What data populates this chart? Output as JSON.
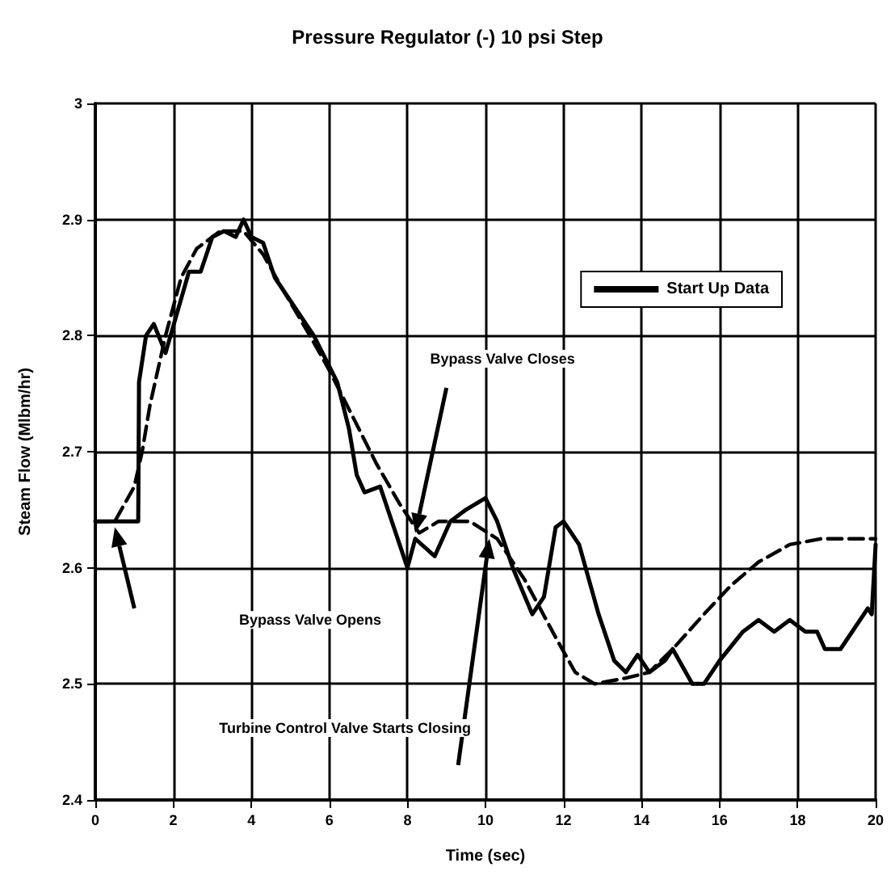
{
  "chart_data": {
    "type": "line",
    "title": "Pressure Regulator (-) 10 psi Step",
    "xlabel": "Time (sec)",
    "ylabel": "Steam Flow (Mlbm/hr)",
    "xlim": [
      0,
      20
    ],
    "xticks": [
      0,
      2,
      4,
      6,
      8,
      10,
      12,
      14,
      16,
      18,
      20
    ],
    "ylim": [
      2.4,
      3
    ],
    "yticks": [
      2.4,
      2.5,
      2.6,
      2.7,
      2.8,
      2.9,
      3
    ],
    "grid": true,
    "legend": "top right",
    "marker": "none",
    "series": [
      {
        "name": "Start Up Data",
        "color": "#000000",
        "line_style": "solid",
        "x": [
          0,
          1.1,
          1.12,
          1.3,
          1.5,
          1.8,
          2.1,
          2.4,
          2.7,
          3.0,
          3.3,
          3.6,
          3.8,
          4.0,
          4.3,
          4.6,
          5.0,
          5.6,
          6.2,
          6.5,
          6.7,
          6.9,
          7.3,
          7.6,
          8.0,
          8.2,
          8.7,
          9.1,
          9.5,
          10.0,
          10.3,
          10.7,
          11.2,
          11.5,
          11.8,
          12.0,
          12.4,
          12.9,
          13.3,
          13.6,
          13.9,
          14.2,
          14.6,
          14.8,
          15.3,
          15.6,
          16.0,
          16.6,
          17.0,
          17.4,
          17.8,
          18.2,
          18.5,
          18.7,
          19.1,
          19.5,
          19.8,
          19.9,
          20
        ],
        "values": [
          2.64,
          2.64,
          2.76,
          2.8,
          2.81,
          2.785,
          2.82,
          2.855,
          2.855,
          2.885,
          2.89,
          2.885,
          2.9,
          2.885,
          2.88,
          2.85,
          2.83,
          2.8,
          2.76,
          2.72,
          2.68,
          2.665,
          2.67,
          2.64,
          2.6,
          2.625,
          2.61,
          2.64,
          2.65,
          2.66,
          2.64,
          2.6,
          2.56,
          2.575,
          2.635,
          2.64,
          2.62,
          2.56,
          2.52,
          2.51,
          2.525,
          2.51,
          2.52,
          2.53,
          2.5,
          2.5,
          2.52,
          2.545,
          2.555,
          2.545,
          2.555,
          2.545,
          2.545,
          2.53,
          2.53,
          2.55,
          2.565,
          2.56,
          2.62
        ]
      },
      {
        "color": "#000000",
        "line_style": "dashed",
        "x": [
          0,
          0.5,
          1.0,
          1.2,
          1.4,
          1.8,
          2.2,
          2.6,
          3.2,
          3.8,
          4.3,
          4.8,
          5.5,
          6.0,
          6.6,
          7.2,
          7.8,
          8.3,
          8.8,
          9.6,
          10.3,
          11.0,
          11.8,
          12.3,
          12.8,
          13.6,
          14.2,
          14.8,
          15.6,
          16.3,
          17.0,
          17.8,
          18.6,
          19.5,
          20
        ],
        "values": [
          2.64,
          2.64,
          2.67,
          2.7,
          2.74,
          2.8,
          2.85,
          2.875,
          2.89,
          2.89,
          2.87,
          2.84,
          2.8,
          2.77,
          2.73,
          2.69,
          2.655,
          2.63,
          2.64,
          2.64,
          2.625,
          2.59,
          2.54,
          2.51,
          2.5,
          2.505,
          2.51,
          2.53,
          2.56,
          2.585,
          2.605,
          2.62,
          2.625,
          2.625,
          2.625
        ]
      }
    ],
    "annotations": [
      "Bypass Valve Opens",
      "Bypass Valve Closes",
      "Turbine Control Valve Starts Closing"
    ]
  }
}
